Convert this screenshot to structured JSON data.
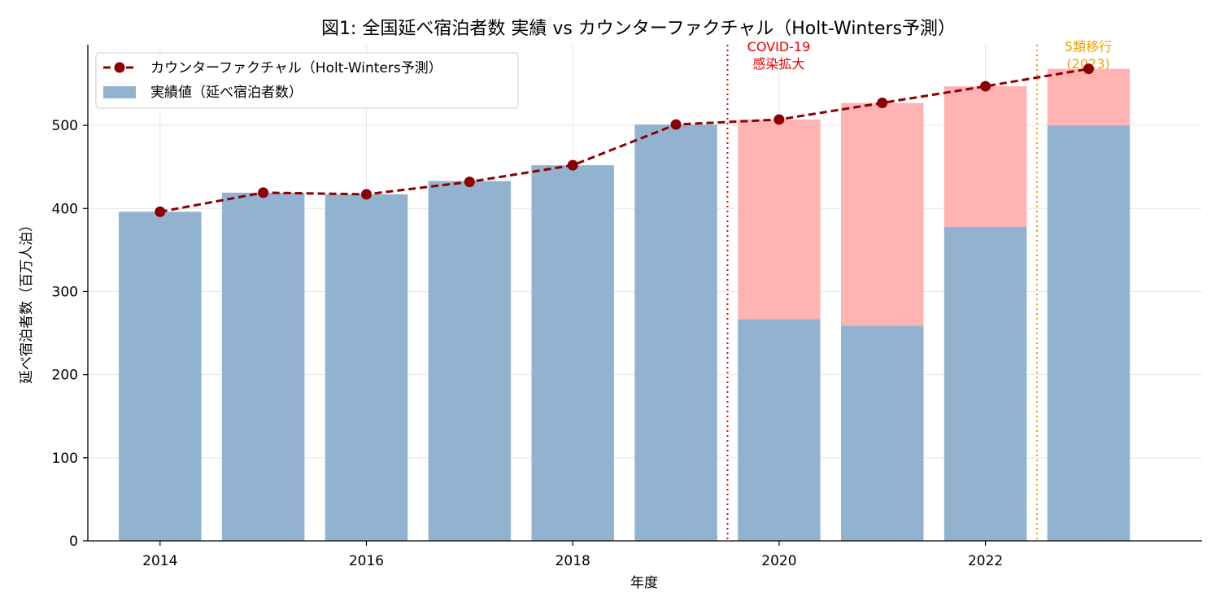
{
  "chart_data": {
    "type": "bar",
    "title": "図1: 全国延べ宿泊者数 実績 vs カウンターファクチャル（Holt-Winters予測）",
    "xlabel": "年度",
    "ylabel": "延べ宿泊者数（百万人泊）",
    "x": [
      2014,
      2015,
      2016,
      2017,
      2018,
      2019,
      2020,
      2021,
      2022,
      2023
    ],
    "x_ticks": [
      "2014",
      "2016",
      "2018",
      "2020",
      "2022"
    ],
    "y_ticks": [
      "0",
      "100",
      "200",
      "300",
      "400",
      "500"
    ],
    "ylim": [
      0,
      597
    ],
    "grid": true,
    "legend_position": "upper-left",
    "series": [
      {
        "name": "実績値（延べ宿泊者数）",
        "kind": "bar",
        "color": "#92b3d0",
        "values": [
          396,
          419,
          417,
          433,
          452,
          501,
          267,
          259,
          378,
          500
        ]
      },
      {
        "name": "カウンターファクチャル（Holt-Winters予測）",
        "kind": "line",
        "style": "dashed",
        "marker": "circle",
        "color": "#8b0000",
        "values": [
          396,
          419,
          417,
          432,
          452,
          501,
          507,
          527,
          547,
          568
        ]
      }
    ],
    "gap_fill_color": "#ffb3b3",
    "annotations": [
      {
        "x": 2019.5,
        "lines": [
          "COVID-19",
          "感染拡大"
        ],
        "color": "#e60000",
        "style": "dotted"
      },
      {
        "x": 2022.5,
        "lines": [
          "5類移行",
          "(2023)"
        ],
        "color": "#f5a000",
        "style": "dotted"
      }
    ]
  }
}
